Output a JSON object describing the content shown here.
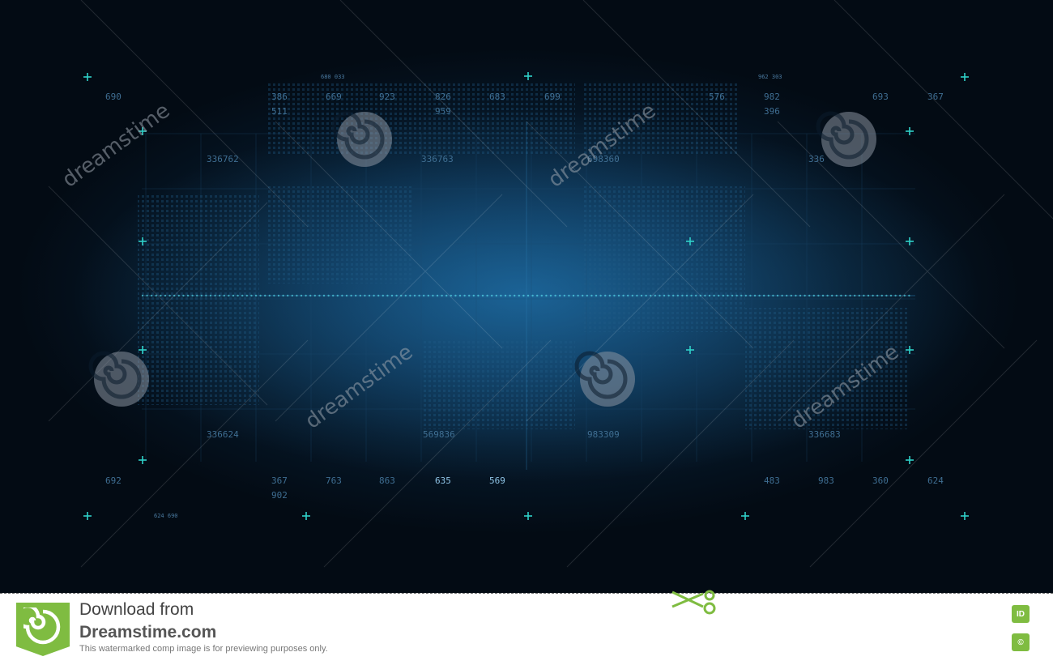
{
  "scene": {
    "description_colors": {
      "background_dark": "#030b14",
      "glow": "#0f3f66",
      "wave_color": "#37b4e8",
      "wave_bright": "#5ee6f2",
      "grid": "#1c4a70",
      "accent_plus": "#2fd1c9"
    },
    "watermark_text": "dreamstime",
    "watermark_spiral_icon": "spiral-logo-icon",
    "numbers": [
      "690",
      "386",
      "511",
      "669",
      "680 033",
      "923",
      "826",
      "959",
      "683",
      "699",
      "576",
      "982",
      "396",
      "962 303",
      "693",
      "367",
      "336762",
      "336763",
      "698360",
      "336",
      "336624",
      "569836",
      "983309",
      "336683",
      "692",
      "367",
      "902",
      "763",
      "863",
      "635",
      "569",
      "483",
      "983",
      "360",
      "624",
      "624 690"
    ]
  },
  "footer": {
    "line1": "Download from",
    "line2": "Dreamstime.com",
    "line3": "This watermarked comp image is for previewing purposes only.",
    "id_badge": "ID",
    "copyright_badge": "©",
    "logo_icon": "dreamstime-logo-icon",
    "scissors_icon": "scissors-icon",
    "brand_color": "#7fbc41"
  }
}
